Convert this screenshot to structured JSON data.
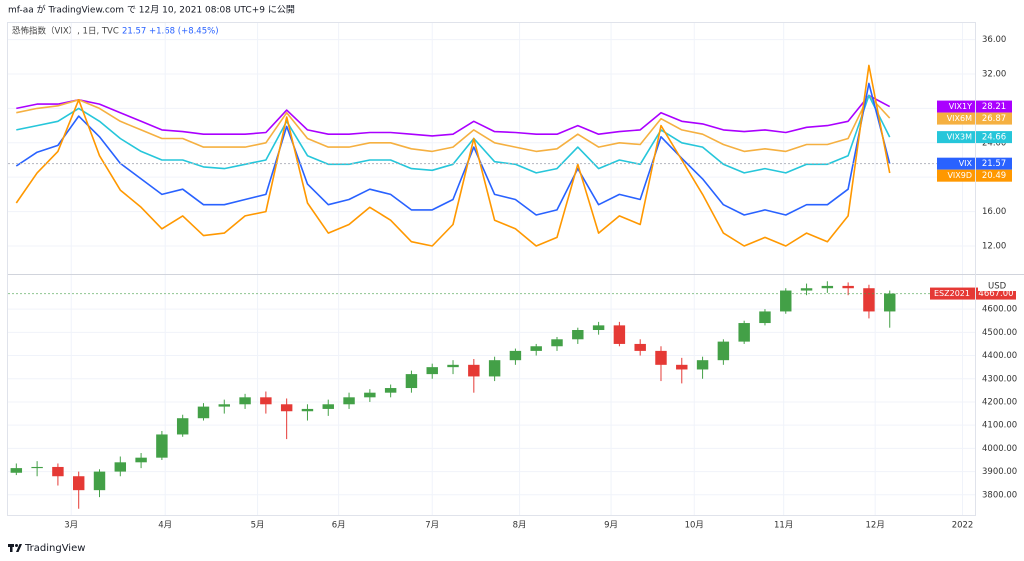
{
  "header": "mf-aa が TradingView.com で 12月 10, 2021 08:08 UTC+9 に公開",
  "footer": "TradingView",
  "chart_data": [
    {
      "type": "line",
      "title": "恐怖指数（VIX）, 1日, TVC",
      "last_price": "21.57",
      "change": "+1.68 (+8.45%)",
      "x": [
        0,
        1,
        2,
        3,
        4,
        5,
        6,
        7,
        8,
        9,
        10,
        11,
        12,
        13,
        14,
        15,
        16,
        17,
        18,
        19,
        20,
        21,
        22,
        23,
        24,
        25,
        26,
        27,
        28,
        29,
        30,
        31,
        32,
        33,
        34,
        35,
        36,
        37,
        38,
        39,
        40,
        41,
        42
      ],
      "xlim": [
        -0.4,
        46.1
      ],
      "ylim": [
        8.74,
        37.93
      ],
      "yticks": [
        {
          "value": 12,
          "label": "12.00"
        },
        {
          "value": 16,
          "label": "16.00"
        },
        {
          "value": 20,
          "label": "20.00"
        },
        {
          "value": 24,
          "label": "24.00"
        },
        {
          "value": 28,
          "label": "28.00"
        },
        {
          "value": 32,
          "label": "32.00"
        },
        {
          "value": 36,
          "label": "36.00"
        }
      ],
      "series": [
        {
          "name": "VIX1Y",
          "color": "#aa00ff",
          "values": [
            28.0,
            28.5,
            28.5,
            29.0,
            28.5,
            27.5,
            26.5,
            25.5,
            25.3,
            25.0,
            25.0,
            25.0,
            25.2,
            27.8,
            25.5,
            25.0,
            25.0,
            25.2,
            25.2,
            25.0,
            24.8,
            25.0,
            26.5,
            25.3,
            25.2,
            25.0,
            25.0,
            26.0,
            25.0,
            25.3,
            25.5,
            27.5,
            26.5,
            26.2,
            25.5,
            25.3,
            25.5,
            25.2,
            25.8,
            26.0,
            26.5,
            29.5,
            28.21
          ]
        },
        {
          "name": "VIX6M",
          "color": "#f5b041",
          "values": [
            27.5,
            28.0,
            28.3,
            29.0,
            28.0,
            26.5,
            25.5,
            24.5,
            24.5,
            23.5,
            23.5,
            23.5,
            24.0,
            27.5,
            24.5,
            23.5,
            23.5,
            24.0,
            24.0,
            23.3,
            23.0,
            23.5,
            25.5,
            24.0,
            23.5,
            23.0,
            23.3,
            25.0,
            23.5,
            24.0,
            23.8,
            26.8,
            25.5,
            25.0,
            23.8,
            23.0,
            23.3,
            23.0,
            23.8,
            23.8,
            24.5,
            29.5,
            26.87
          ]
        },
        {
          "name": "VIX3M",
          "color": "#26c6da",
          "values": [
            25.5,
            26.0,
            26.5,
            28.0,
            26.5,
            24.5,
            23.0,
            22.0,
            22.0,
            21.2,
            21.0,
            21.5,
            22.0,
            26.5,
            22.5,
            21.5,
            21.5,
            22.0,
            22.0,
            21.0,
            20.8,
            21.5,
            24.5,
            21.8,
            21.5,
            20.5,
            21.0,
            23.5,
            21.0,
            22.0,
            21.5,
            25.5,
            24.0,
            23.5,
            21.5,
            20.5,
            21.0,
            20.5,
            21.5,
            21.5,
            22.5,
            29.5,
            24.66
          ]
        },
        {
          "name": "VIX",
          "color": "#2962ff",
          "values": [
            21.3,
            22.9,
            23.7,
            27.1,
            24.7,
            21.6,
            19.8,
            18.0,
            18.6,
            16.8,
            16.8,
            17.4,
            18.0,
            25.9,
            19.2,
            16.8,
            17.4,
            18.6,
            18.0,
            16.2,
            16.2,
            17.4,
            23.5,
            18.0,
            17.4,
            15.6,
            16.2,
            21.0,
            16.8,
            18.0,
            17.4,
            24.7,
            22.2,
            19.8,
            16.8,
            15.6,
            16.2,
            15.6,
            16.8,
            16.8,
            18.6,
            30.9,
            21.57
          ]
        },
        {
          "name": "VIX9D",
          "color": "#ff9800",
          "values": [
            17.0,
            20.5,
            23.0,
            29.0,
            22.5,
            18.5,
            16.5,
            14.0,
            15.5,
            13.2,
            13.5,
            15.5,
            16.0,
            27.0,
            17.0,
            13.5,
            14.5,
            16.5,
            15.0,
            12.5,
            12.0,
            14.5,
            24.5,
            15.0,
            14.0,
            12.0,
            13.0,
            21.5,
            13.5,
            15.5,
            14.5,
            26.0,
            22.0,
            18.0,
            13.5,
            12.0,
            13.0,
            12.0,
            13.5,
            12.5,
            15.5,
            33.0,
            20.49
          ]
        }
      ]
    },
    {
      "type": "candlestick",
      "name": "ESZ2021",
      "unit": "USD",
      "last_label": "4667.00",
      "up_color": "#43a047",
      "down_color": "#e53935",
      "x": [
        0,
        1,
        2,
        3,
        4,
        5,
        6,
        7,
        8,
        9,
        10,
        11,
        12,
        13,
        14,
        15,
        16,
        17,
        18,
        19,
        20,
        21,
        22,
        23,
        24,
        25,
        26,
        27,
        28,
        29,
        30,
        31,
        32,
        33,
        34,
        35,
        36,
        37,
        38,
        39,
        40,
        41,
        42
      ],
      "xlim": [
        -0.4,
        46.1
      ],
      "xticks": [
        {
          "value": 2.64,
          "label": "3月"
        },
        {
          "value": 7.16,
          "label": "4月"
        },
        {
          "value": 11.6,
          "label": "5月"
        },
        {
          "value": 15.5,
          "label": "6月"
        },
        {
          "value": 20.0,
          "label": "7月"
        },
        {
          "value": 24.2,
          "label": "8月"
        },
        {
          "value": 28.6,
          "label": "9月"
        },
        {
          "value": 32.6,
          "label": "10月"
        },
        {
          "value": 36.9,
          "label": "11月"
        },
        {
          "value": 41.3,
          "label": "12月"
        },
        {
          "value": 45.5,
          "label": "2022"
        }
      ],
      "ylim": [
        3713,
        4747
      ],
      "yticks": [
        {
          "value": 3800,
          "label": "3800.00"
        },
        {
          "value": 3900,
          "label": "3900.00"
        },
        {
          "value": 4000,
          "label": "4000.00"
        },
        {
          "value": 4100,
          "label": "4100.00"
        },
        {
          "value": 4200,
          "label": "4200.00"
        },
        {
          "value": 4300,
          "label": "4300.00"
        },
        {
          "value": 4400,
          "label": "4400.00"
        },
        {
          "value": 4500,
          "label": "4500.00"
        },
        {
          "value": 4600,
          "label": "4600.00"
        }
      ],
      "open": [
        3895,
        3915,
        3920,
        3880,
        3820,
        3900,
        3940,
        3960,
        4060,
        4130,
        4180,
        4190,
        4220,
        4190,
        4160,
        4170,
        4190,
        4220,
        4240,
        4260,
        4320,
        4350,
        4360,
        4310,
        4380,
        4420,
        4440,
        4470,
        4510,
        4530,
        4450,
        4420,
        4360,
        4340,
        4380,
        4460,
        4540,
        4590,
        4680,
        4690,
        4700,
        4690,
        4590
      ],
      "high": [
        3935,
        3945,
        3935,
        3900,
        3910,
        3965,
        3980,
        4075,
        4145,
        4195,
        4210,
        4235,
        4245,
        4215,
        4190,
        4210,
        4240,
        4255,
        4275,
        4335,
        4365,
        4380,
        4385,
        4395,
        4430,
        4450,
        4480,
        4520,
        4545,
        4545,
        4470,
        4440,
        4390,
        4395,
        4470,
        4550,
        4600,
        4690,
        4710,
        4720,
        4715,
        4705,
        4680
      ],
      "low": [
        3885,
        3880,
        3840,
        3740,
        3790,
        3880,
        3915,
        3950,
        4050,
        4120,
        4150,
        4170,
        4150,
        4040,
        4120,
        4140,
        4170,
        4200,
        4220,
        4240,
        4300,
        4320,
        4240,
        4290,
        4360,
        4400,
        4420,
        4450,
        4490,
        4440,
        4400,
        4290,
        4280,
        4300,
        4360,
        4450,
        4530,
        4580,
        4660,
        4670,
        4660,
        4560,
        4520
      ],
      "close": [
        3915,
        3920,
        3880,
        3820,
        3900,
        3940,
        3960,
        4060,
        4130,
        4180,
        4190,
        4220,
        4190,
        4160,
        4170,
        4190,
        4220,
        4240,
        4260,
        4320,
        4350,
        4360,
        4310,
        4380,
        4420,
        4440,
        4470,
        4510,
        4530,
        4450,
        4420,
        4360,
        4340,
        4380,
        4460,
        4540,
        4590,
        4680,
        4690,
        4700,
        4690,
        4590,
        4667
      ]
    }
  ]
}
